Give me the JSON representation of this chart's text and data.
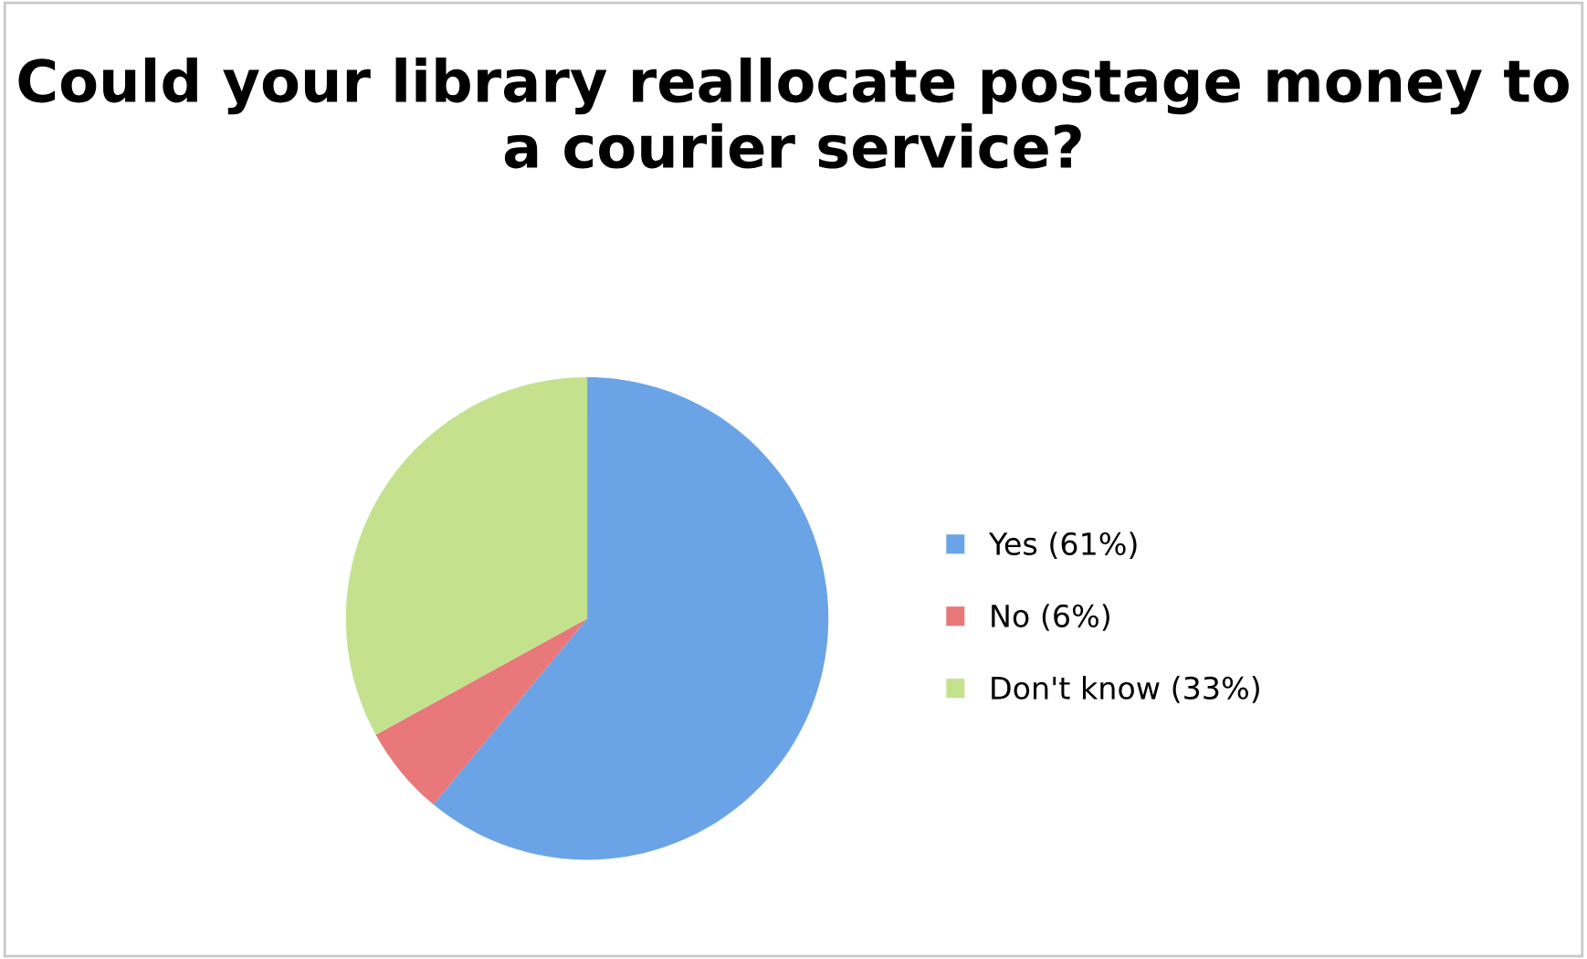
{
  "chart_data": {
    "type": "pie",
    "title": "Could your library reallocate postage money to a courier service?",
    "categories": [
      "Yes (61%)",
      "No (6%)",
      "Don't know (33%)"
    ],
    "values": [
      61,
      6,
      33
    ],
    "colors": [
      "#6aa4e6",
      "#e8787a",
      "#c4e28e"
    ],
    "legend": "right"
  }
}
